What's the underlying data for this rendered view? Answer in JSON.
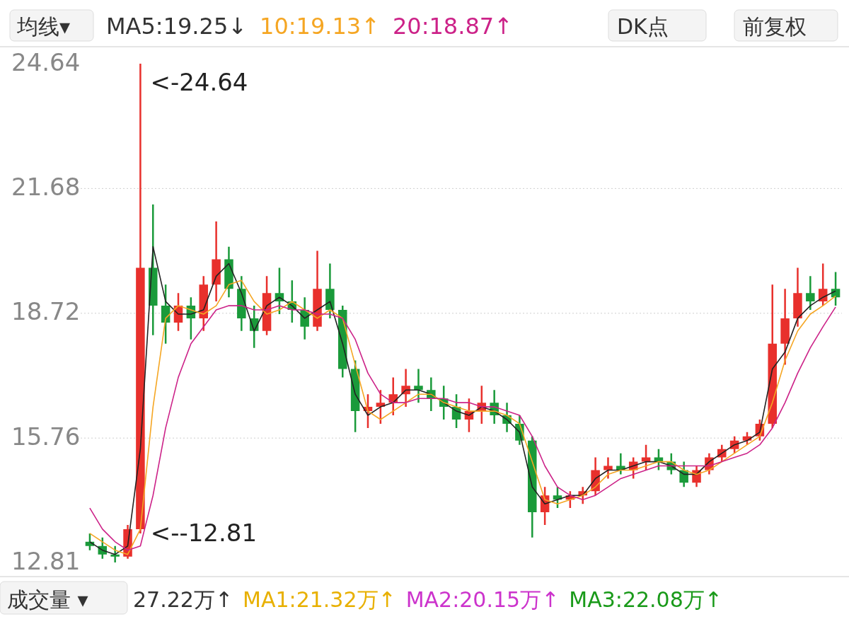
{
  "chart_data": {
    "type": "candlestick",
    "categories": [
      null,
      null,
      null,
      null,
      null,
      null,
      null,
      null,
      null,
      null,
      null,
      null,
      null,
      null,
      null,
      null,
      null,
      null,
      null,
      null,
      null,
      null,
      null,
      null,
      null,
      null,
      null,
      null,
      null,
      null,
      null,
      null,
      null,
      null,
      null,
      null,
      null,
      null,
      null,
      null,
      null,
      null,
      null,
      null,
      null,
      null,
      null,
      null,
      null,
      null,
      null,
      null,
      null,
      null,
      null,
      null,
      null,
      null,
      null,
      null
    ],
    "ohlc": [
      [
        13.3,
        13.5,
        13.1,
        13.2
      ],
      [
        13.2,
        13.4,
        12.9,
        13.0
      ],
      [
        13.0,
        13.2,
        12.81,
        12.95
      ],
      [
        12.95,
        13.7,
        12.9,
        13.6
      ],
      [
        13.6,
        24.64,
        13.5,
        19.8
      ],
      [
        19.8,
        21.3,
        18.2,
        18.9
      ],
      [
        18.9,
        19.4,
        18.0,
        18.5
      ],
      [
        18.5,
        19.2,
        18.3,
        18.9
      ],
      [
        18.9,
        19.1,
        18.1,
        18.6
      ],
      [
        18.6,
        19.6,
        18.3,
        19.4
      ],
      [
        19.4,
        20.9,
        19.0,
        20.0
      ],
      [
        20.0,
        20.3,
        19.1,
        19.3
      ],
      [
        19.3,
        19.6,
        18.3,
        18.6
      ],
      [
        18.6,
        18.9,
        17.9,
        18.3
      ],
      [
        18.3,
        19.6,
        18.2,
        19.2
      ],
      [
        19.2,
        19.8,
        18.7,
        19.0
      ],
      [
        19.0,
        19.5,
        18.5,
        18.8
      ],
      [
        18.8,
        19.1,
        18.1,
        18.4
      ],
      [
        18.4,
        20.2,
        18.3,
        19.3
      ],
      [
        19.3,
        19.9,
        18.6,
        18.8
      ],
      [
        18.8,
        18.9,
        17.2,
        17.4
      ],
      [
        17.4,
        17.6,
        15.9,
        16.4
      ],
      [
        16.4,
        16.8,
        16.0,
        16.5
      ],
      [
        16.5,
        16.9,
        16.1,
        16.6
      ],
      [
        16.6,
        17.2,
        16.3,
        16.8
      ],
      [
        16.8,
        17.4,
        16.5,
        17.0
      ],
      [
        17.0,
        17.4,
        16.6,
        16.9
      ],
      [
        16.9,
        17.2,
        16.4,
        16.7
      ],
      [
        16.7,
        17.0,
        16.2,
        16.5
      ],
      [
        16.5,
        16.8,
        16.0,
        16.2
      ],
      [
        16.2,
        16.7,
        15.9,
        16.4
      ],
      [
        16.4,
        17.0,
        16.1,
        16.6
      ],
      [
        16.6,
        16.9,
        16.1,
        16.3
      ],
      [
        16.3,
        16.6,
        15.9,
        16.1
      ],
      [
        16.1,
        16.3,
        15.6,
        15.7
      ],
      [
        15.7,
        15.8,
        13.4,
        14.0
      ],
      [
        14.0,
        14.6,
        13.7,
        14.4
      ],
      [
        14.4,
        14.6,
        14.1,
        14.3
      ],
      [
        14.3,
        14.5,
        14.1,
        14.4
      ],
      [
        14.4,
        14.6,
        14.2,
        14.5
      ],
      [
        14.5,
        15.3,
        14.4,
        15.0
      ],
      [
        15.0,
        15.3,
        14.8,
        15.1
      ],
      [
        15.1,
        15.4,
        14.9,
        15.0
      ],
      [
        15.0,
        15.3,
        14.8,
        15.2
      ],
      [
        15.2,
        15.6,
        15.0,
        15.3
      ],
      [
        15.3,
        15.5,
        15.0,
        15.2
      ],
      [
        15.2,
        15.4,
        14.9,
        15.0
      ],
      [
        15.0,
        15.2,
        14.6,
        14.7
      ],
      [
        14.7,
        15.1,
        14.6,
        15.0
      ],
      [
        15.0,
        15.4,
        14.9,
        15.3
      ],
      [
        15.3,
        15.6,
        15.2,
        15.5
      ],
      [
        15.5,
        15.8,
        15.4,
        15.7
      ],
      [
        15.7,
        15.9,
        15.6,
        15.8
      ],
      [
        15.8,
        16.2,
        15.7,
        16.1
      ],
      [
        16.1,
        19.4,
        16.0,
        18.0
      ],
      [
        18.0,
        19.3,
        17.5,
        18.6
      ],
      [
        18.6,
        19.8,
        18.4,
        19.2
      ],
      [
        19.2,
        19.6,
        18.8,
        19.0
      ],
      [
        19.0,
        19.9,
        18.9,
        19.3
      ],
      [
        19.3,
        19.7,
        18.9,
        19.1
      ]
    ],
    "series": [
      {
        "name": "MA5:19.25↓",
        "type": "line",
        "color": "#222222",
        "values": [
          13.3,
          13.1,
          13.0,
          13.2,
          15.5,
          20.3,
          19.0,
          18.7,
          18.7,
          18.8,
          19.6,
          19.9,
          19.2,
          18.3,
          18.9,
          19.1,
          18.9,
          18.6,
          18.8,
          19.0,
          18.0,
          16.8,
          16.3,
          16.5,
          16.6,
          16.9,
          16.9,
          16.8,
          16.6,
          16.4,
          16.3,
          16.5,
          16.4,
          16.2,
          15.9,
          14.6,
          14.2,
          14.3,
          14.4,
          14.4,
          14.8,
          15.0,
          15.0,
          15.1,
          15.2,
          15.2,
          15.1,
          14.9,
          14.9,
          15.2,
          15.4,
          15.6,
          15.7,
          15.9,
          17.4,
          17.8,
          18.6,
          18.9,
          19.1,
          19.25
        ]
      },
      {
        "name": "10:19.13↑",
        "type": "line",
        "color": "#f5a623",
        "values": [
          13.5,
          13.3,
          13.1,
          13.0,
          13.6,
          16.5,
          18.6,
          18.9,
          18.8,
          18.7,
          18.9,
          19.4,
          19.5,
          19.0,
          18.7,
          18.8,
          19.0,
          18.8,
          18.6,
          18.8,
          18.6,
          17.5,
          16.4,
          16.2,
          16.4,
          16.6,
          16.8,
          16.8,
          16.6,
          16.5,
          16.4,
          16.4,
          16.4,
          16.3,
          16.1,
          15.2,
          14.3,
          14.2,
          14.3,
          14.4,
          14.6,
          14.9,
          15.0,
          15.0,
          15.1,
          15.2,
          15.2,
          15.0,
          14.9,
          15.0,
          15.2,
          15.4,
          15.6,
          15.8,
          16.6,
          17.6,
          18.3,
          18.7,
          18.9,
          19.13
        ]
      },
      {
        "name": "20:18.87↑",
        "type": "line",
        "color": "#cc2288",
        "values": [
          14.1,
          13.6,
          13.3,
          13.1,
          13.2,
          14.4,
          16.0,
          17.2,
          18.0,
          18.4,
          18.8,
          18.9,
          18.9,
          18.8,
          18.8,
          18.9,
          18.8,
          18.8,
          18.7,
          18.7,
          18.6,
          18.1,
          17.3,
          16.8,
          16.6,
          16.6,
          16.7,
          16.7,
          16.7,
          16.6,
          16.6,
          16.5,
          16.5,
          16.4,
          16.3,
          15.8,
          15.1,
          14.6,
          14.4,
          14.3,
          14.4,
          14.6,
          14.8,
          14.9,
          15.0,
          15.1,
          15.1,
          15.1,
          15.1,
          15.1,
          15.2,
          15.3,
          15.4,
          15.6,
          16.0,
          16.6,
          17.3,
          17.9,
          18.4,
          18.87
        ]
      }
    ],
    "ylim": [
      12.81,
      24.64
    ],
    "yticks": [
      24.64,
      21.68,
      18.72,
      15.76,
      12.81
    ],
    "grid": "y",
    "legend": "top left",
    "annotations": [
      "<-24.64",
      "<--12.81",
      "均线▾",
      "DK点",
      "前复权",
      "成交量 ▾",
      "27.22万↑",
      "MA1:21.32万↑",
      "MA2:20.15万↑",
      "MA3:22.08万↑"
    ]
  }
}
